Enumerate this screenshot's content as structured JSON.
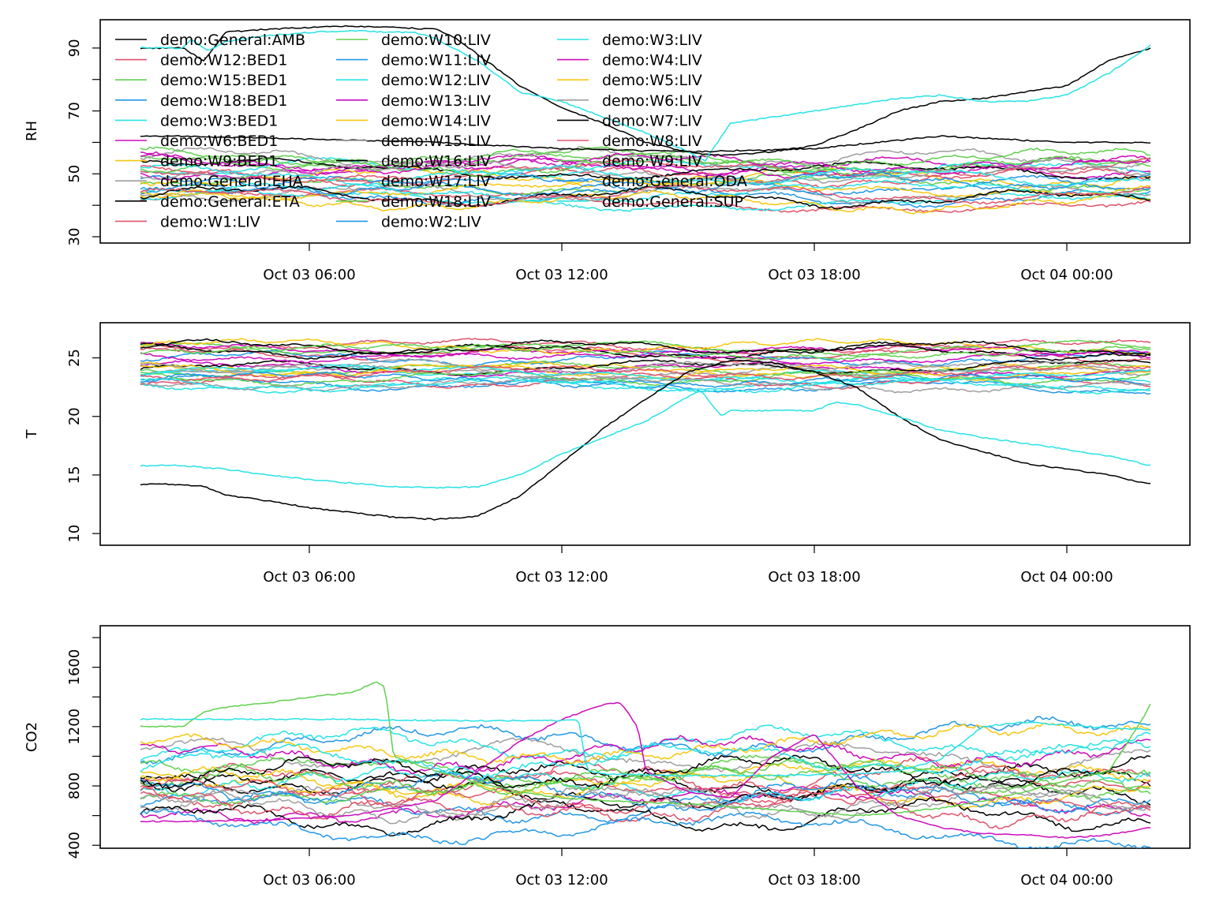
{
  "palette": [
    "#000000",
    "#DF536B",
    "#61D04F",
    "#2297E6",
    "#28E2E5",
    "#CD0BBC",
    "#F5C710",
    "#9E9E9E"
  ],
  "chart_data": {
    "type": "line",
    "x_tick_labels": [
      "Oct 03 06:00",
      "Oct 03 12:00",
      "Oct 03 18:00",
      "Oct 04 00:00"
    ],
    "x_tick_hours": [
      6,
      12,
      18,
      24
    ],
    "x_range_hours": [
      2,
      26
    ],
    "grid": false,
    "legend_placement": "top-left (inside RH panel)",
    "legend": [
      "demo:General:AMB",
      "demo:W12:BED1",
      "demo:W15:BED1",
      "demo:W18:BED1",
      "demo:W3:BED1",
      "demo:W6:BED1",
      "demo:W9:BED1",
      "demo:General:EHA",
      "demo:General:ETA",
      "demo:W1:LIV",
      "demo:W10:LIV",
      "demo:W11:LIV",
      "demo:W12:LIV",
      "demo:W13:LIV",
      "demo:W14:LIV",
      "demo:W15:LIV",
      "demo:W16:LIV",
      "demo:W17:LIV",
      "demo:W18:LIV",
      "demo:W2:LIV",
      "demo:W3:LIV",
      "demo:W4:LIV",
      "demo:W5:LIV",
      "demo:W6:LIV",
      "demo:W7:LIV",
      "demo:W8:LIV",
      "demo:W9:LIV",
      "demo:General:ODA",
      "demo:General:SUP"
    ],
    "panels": [
      {
        "ylabel": "RH",
        "ylim": [
          28,
          99
        ],
        "yticks_labeled": [
          30,
          50,
          70,
          90
        ],
        "yticks_minor": [
          40,
          60,
          80
        ],
        "highlight": [
          {
            "name": "demo:General:AMB",
            "color_index": 0,
            "x": [
              3,
              3.5,
              4,
              5,
              6,
              7,
              8,
              9,
              9.5,
              10,
              11,
              12,
              13,
              14,
              15,
              15.5,
              16,
              17,
              18,
              19,
              20,
              21,
              22,
              23,
              24,
              25,
              26
            ],
            "y": [
              90,
              86,
              95,
              96,
              96.5,
              97,
              96.5,
              96,
              93,
              88,
              78,
              71,
              66,
              60,
              57,
              56,
              56,
              57,
              59,
              64,
              70,
              73,
              74,
              76,
              78,
              86,
              90
            ]
          },
          {
            "name": "demo:General:ODA",
            "color_index": 4,
            "x": [
              3,
              3.2,
              3.6,
              4,
              5,
              6,
              7,
              8,
              8.5,
              9,
              10,
              11,
              12,
              13,
              14,
              15,
              15.4,
              15.8,
              16,
              17,
              18,
              19,
              20,
              21,
              22,
              23,
              24,
              25,
              26
            ],
            "y": [
              90,
              93,
              89,
              92,
              94,
              95,
              95.5,
              95,
              95,
              93,
              86,
              76,
              73,
              68,
              63,
              57,
              54,
              62,
              66,
              68,
              70,
              72,
              74,
              75,
              73,
              73,
              75,
              82,
              91
            ]
          },
          {
            "name": "demo:General:ETA",
            "color_index": 0,
            "x": [
              3,
              6,
              9,
              12,
              15,
              18,
              21,
              24,
              26
            ],
            "y": [
              62,
              61,
              60,
              58,
              57,
              58,
              62,
              60,
              60
            ]
          }
        ],
        "indoor_band": {
          "mean": [
            41,
            56
          ],
          "spread": 2.5
        }
      },
      {
        "ylabel": "T",
        "ylim": [
          9,
          28
        ],
        "yticks_labeled": [
          10,
          15,
          20,
          25
        ],
        "yticks_minor": [],
        "highlight": [
          {
            "name": "demo:General:AMB",
            "color_index": 0,
            "x": [
              3,
              3.5,
              4,
              5,
              6,
              7,
              8,
              9,
              10,
              11,
              12,
              13,
              14,
              15,
              16,
              17,
              18,
              19,
              20,
              21,
              22,
              23,
              24,
              25,
              26
            ],
            "y": [
              14.2,
              14.0,
              13.3,
              12.8,
              12.2,
              11.8,
              11.4,
              11.2,
              11.5,
              13.2,
              16.0,
              19.0,
              21.5,
              23.8,
              24.8,
              24.6,
              23.8,
              22.5,
              20.0,
              18.0,
              17.0,
              16.0,
              15.5,
              15.0,
              14.2
            ]
          },
          {
            "name": "demo:General:ODA",
            "color_index": 4,
            "x": [
              3,
              4,
              5,
              6,
              7,
              8,
              9,
              10,
              11,
              12,
              13,
              14,
              15,
              15.3,
              15.8,
              16,
              17,
              18,
              18.5,
              19,
              20,
              21,
              22,
              23,
              24,
              25,
              26
            ],
            "y": [
              15.8,
              15.5,
              15.0,
              14.6,
              14.3,
              14.0,
              13.9,
              14.0,
              15.0,
              16.8,
              18.2,
              19.6,
              21.7,
              22.2,
              20.0,
              20.5,
              20.5,
              20.5,
              21.2,
              21.0,
              20.0,
              18.8,
              18.2,
              17.7,
              17.2,
              16.6,
              15.8
            ]
          }
        ],
        "indoor_band": {
          "mean": [
            22.6,
            26.2
          ],
          "spread": 0.5
        }
      },
      {
        "ylabel": "CO2",
        "ylim": [
          380,
          1880
        ],
        "yticks_labeled": [
          400,
          800,
          1200,
          1600
        ],
        "yticks_minor": [
          600,
          1000,
          1400,
          1800
        ],
        "highlight": [
          {
            "name": "demo:W15:BED1",
            "color_index": 2,
            "x": [
              3,
              3.5,
              4,
              5,
              6,
              7,
              7.6,
              7.8,
              8,
              9,
              10,
              11,
              12,
              13,
              14,
              15,
              16,
              17,
              18,
              19,
              20,
              21,
              22,
              23,
              24,
              25,
              25.8,
              26
            ],
            "y": [
              1200,
              1300,
              1330,
              1360,
              1400,
              1430,
              1500,
              1470,
              1000,
              900,
              820,
              760,
              720,
              700,
              690,
              680,
              660,
              640,
              620,
              600,
              620,
              650,
              700,
              760,
              840,
              900,
              1250,
              1360
            ]
          },
          {
            "name": "demo:W13:LIV",
            "color_index": 5,
            "x": [
              3,
              5,
              7,
              9,
              10,
              11,
              12,
              13,
              13.4,
              13.8,
              14,
              15,
              16,
              17,
              18,
              19,
              20,
              21,
              22,
              23,
              24,
              25,
              26
            ],
            "y": [
              560,
              570,
              600,
              700,
              900,
              1100,
              1250,
              1350,
              1360,
              1200,
              900,
              760,
              720,
              1000,
              1150,
              800,
              600,
              520,
              480,
              470,
              450,
              470,
              520
            ]
          },
          {
            "name": "demo:W3:BED1",
            "color_index": 4,
            "x": [
              3,
              5,
              7,
              9,
              10,
              11,
              12,
              12.4,
              12.6,
              13,
              15,
              17,
              19,
              20,
              21,
              22,
              23,
              24,
              25,
              26
            ],
            "y": [
              1250,
              1250,
              1250,
              1240,
              1240,
              1240,
              1240,
              1245,
              900,
              880,
              870,
              870,
              880,
              900,
              980,
              1200,
              1230,
              1210,
              1190,
              1180
            ]
          }
        ],
        "indoor_band": {
          "mean": [
            520,
            1080
          ],
          "spread": 90
        }
      }
    ]
  }
}
